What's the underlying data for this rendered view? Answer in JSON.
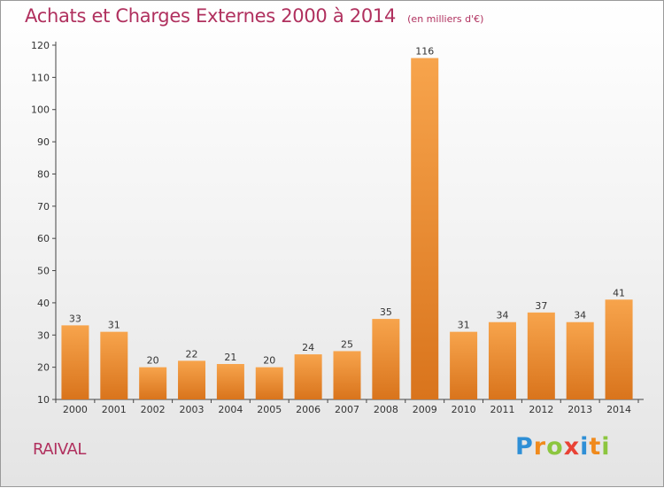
{
  "header": {
    "title": "Achats et Charges Externes 2000 à 2014",
    "subtitle": "(en milliers d'€)"
  },
  "footer": {
    "commune": "RAIVAL",
    "logo": "Proxiti",
    "logo_letters": [
      {
        "ch": "P",
        "color": "#2e8fd6"
      },
      {
        "ch": "r",
        "color": "#f08a1c"
      },
      {
        "ch": "o",
        "color": "#8cc63f"
      },
      {
        "ch": "x",
        "color": "#e94235"
      },
      {
        "ch": "i",
        "color": "#2e8fd6"
      },
      {
        "ch": "t",
        "color": "#f08a1c"
      },
      {
        "ch": "i",
        "color": "#8cc63f"
      }
    ]
  },
  "chart_data": {
    "type": "bar",
    "title": "Achats et Charges Externes 2000 à 2014",
    "subtitle": "(en milliers d'€)",
    "categories": [
      "2000",
      "2001",
      "2002",
      "2003",
      "2004",
      "2005",
      "2006",
      "2007",
      "2008",
      "2009",
      "2010",
      "2011",
      "2012",
      "2013",
      "2014"
    ],
    "values": [
      33,
      31,
      20,
      22,
      21,
      20,
      24,
      25,
      35,
      116,
      31,
      34,
      37,
      34,
      41
    ],
    "xlabel": "",
    "ylabel": "",
    "ylim": [
      10,
      120
    ],
    "yticks": [
      10,
      20,
      30,
      40,
      50,
      60,
      70,
      80,
      90,
      100,
      110,
      120
    ],
    "grid": false,
    "legend": "none",
    "colors": {
      "bar_light": "#f7a44c",
      "bar_dark": "#d9741c",
      "axis": "#555555",
      "text": "#333333"
    }
  }
}
